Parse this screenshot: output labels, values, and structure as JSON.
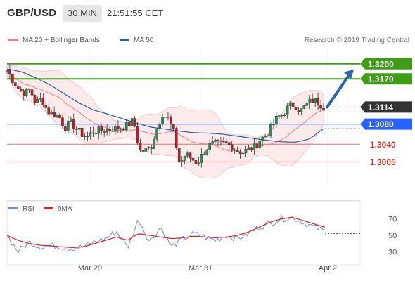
{
  "header": {
    "symbol": "GBP/USD",
    "timeframe": "30 MIN",
    "time": "21:51:55 CET"
  },
  "legend": {
    "ma20_label": "MA 20 + Bollinger Bands",
    "ma50_label": "MA 50",
    "copyright": "Research © 2019 Trading Central"
  },
  "rsi_legend": {
    "rsi_label": "RSI",
    "ma_label": "9MA"
  },
  "colors": {
    "resistance": "#3f9c17",
    "support": "#e07272",
    "current": "#333333",
    "pivot": "#2962ff",
    "candle_up": "#2e8b57",
    "candle_down": "#b22222",
    "ma50": "#2a5ea8",
    "bollinger": "#f6c9c9",
    "rsi": "#6b8fdc",
    "rsi_ma": "#e02020"
  },
  "chart_data": [
    {
      "type": "candlestick",
      "title": "GBP/USD",
      "timeframe": "30 MIN",
      "y_ticks": [
        "1.3200",
        "1.3170",
        "1.3114",
        "1.3080",
        "1.3040",
        "1.3005"
      ],
      "x_ticks": [
        "Mar 29",
        "Mar 31",
        "Apr 2"
      ],
      "levels": [
        {
          "label": "1.3200",
          "value": 1.32,
          "kind": "resistance"
        },
        {
          "label": "1.3170",
          "value": 1.317,
          "kind": "resistance"
        },
        {
          "label": "1.3114",
          "value": 1.3114,
          "kind": "current"
        },
        {
          "label": "1.3080",
          "value": 1.308,
          "kind": "pivot"
        },
        {
          "label": "1.3040",
          "value": 1.304,
          "kind": "support"
        },
        {
          "label": "1.3005",
          "value": 1.3005,
          "kind": "support"
        }
      ],
      "ylim": [
        1.2958,
        1.3229
      ],
      "close_path": [
        1.3187,
        1.3168,
        1.315,
        1.3142,
        1.3148,
        1.3122,
        1.3132,
        1.3106,
        1.31,
        1.3097,
        1.3072,
        1.3084,
        1.3071,
        1.306,
        1.3055,
        1.3066,
        1.3067,
        1.3068,
        1.307,
        1.3072,
        1.3074,
        1.3079,
        1.3088,
        1.3026,
        1.3028,
        1.3034,
        1.307,
        1.3102,
        1.309,
        1.3063,
        1.3,
        1.302,
        1.3012,
        1.3002,
        1.3021,
        1.3036,
        1.3041,
        1.304,
        1.3042,
        1.3036,
        1.3028,
        1.3024,
        1.303,
        1.3034,
        1.305,
        1.3058,
        1.3074,
        1.3094,
        1.31,
        1.3116,
        1.3118,
        1.3106,
        1.3118,
        1.3128,
        1.3124,
        1.3114
      ],
      "ma50_path": [
        1.319,
        1.3184,
        1.3172,
        1.3158,
        1.314,
        1.3122,
        1.3108,
        1.31,
        1.3091,
        1.3082,
        1.3074,
        1.307,
        1.3066,
        1.3063,
        1.3062,
        1.306,
        1.3056,
        1.3052,
        1.3048,
        1.3045,
        1.3044,
        1.305,
        1.3071
      ],
      "arrow_target": 1.32
    },
    {
      "type": "line",
      "title": "RSI",
      "series": [
        {
          "name": "RSI",
          "values": [
            50,
            30,
            42,
            36,
            38,
            36,
            34,
            36,
            42,
            46,
            55,
            35,
            70,
            42,
            60,
            36,
            45,
            52,
            48,
            44,
            50,
            46,
            52,
            60,
            65,
            70,
            72,
            66,
            60,
            55
          ]
        },
        {
          "name": "9MA",
          "values": [
            50,
            44,
            40,
            38,
            37,
            36,
            35,
            36,
            40,
            44,
            48,
            44,
            52,
            50,
            48,
            46,
            47,
            49,
            48,
            47,
            48,
            50,
            54,
            60,
            66,
            70,
            72,
            68,
            64,
            60
          ]
        }
      ],
      "y_ticks": [
        "70",
        "50",
        "30"
      ],
      "ylim": [
        20,
        80
      ]
    }
  ]
}
